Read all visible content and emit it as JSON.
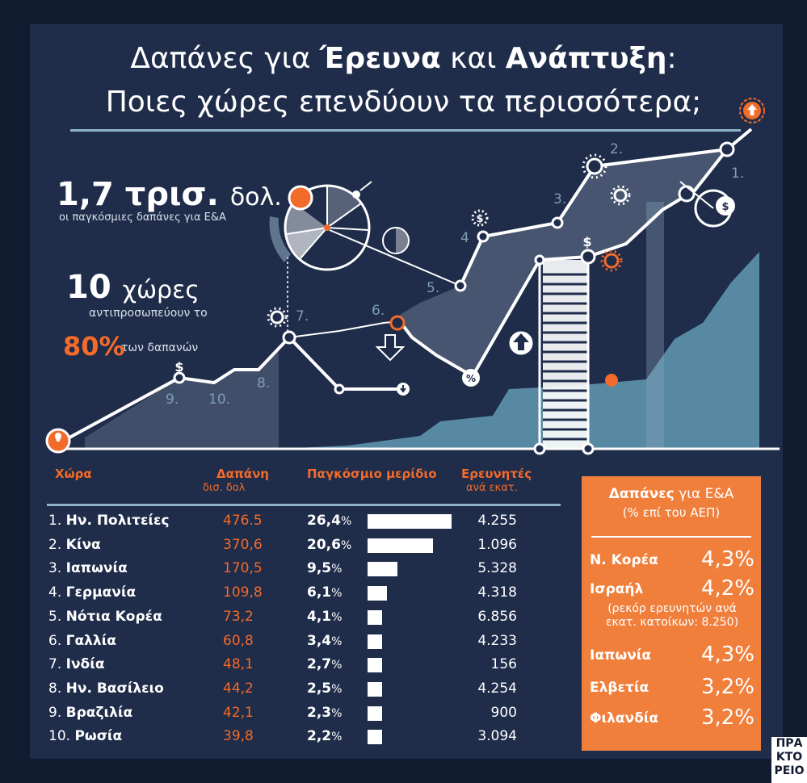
{
  "title": {
    "line1_a": "Δαπάνες για ",
    "line1_b": "Έρευνα",
    "line1_c": " και ",
    "line1_d": "Ανάπτυξη",
    "line1_e": ":",
    "line2": "Ποιες χώρες επενδύουν τα περισσότερα;"
  },
  "stats": {
    "global_value": "1,7 τρισ.",
    "global_unit": "δολ.",
    "global_caption": "οι παγκόσμιες δαπάνες για Ε&Α",
    "countries_value": "10",
    "countries_unit": "χώρες",
    "countries_caption": "αντιπροσωπεύουν το",
    "share_value": "80%",
    "share_caption": "των δαπανών"
  },
  "colors": {
    "background": "#111b30",
    "panel": "#1f2c4a",
    "accent": "#f26b2a",
    "box": "#f07f3c",
    "area": "#5c8ea8",
    "rule": "#8fb3c5"
  },
  "chart_data": {
    "type": "table",
    "columns": [
      "Χώρα",
      "Δαπάνη",
      "Παγκόσμιο μερίδιο",
      "Ερευνητές"
    ],
    "column_units": [
      "",
      "δισ. δολ",
      "",
      "ανά εκατ."
    ],
    "rows": [
      {
        "rank": "1.",
        "country": "Ην.  Πολιτείες",
        "spend": "476.5",
        "share": "26,4",
        "share_value": 26.4,
        "researchers": "4.255"
      },
      {
        "rank": "2.",
        "country": "Κίνα",
        "spend": "370,6",
        "share": "20,6",
        "share_value": 20.6,
        "researchers": "1.096"
      },
      {
        "rank": "3.",
        "country": "Ιαπωνία",
        "spend": "170,5",
        "share": "9,5",
        "share_value": 9.5,
        "researchers": "5.328"
      },
      {
        "rank": "4.",
        "country": "Γερμανία",
        "spend": "109,8",
        "share": "6,1",
        "share_value": 6.1,
        "researchers": "4.318"
      },
      {
        "rank": "5.",
        "country": "Νότια Κορέα",
        "spend": "73,2",
        "share": "4,1",
        "share_value": 4.1,
        "researchers": "6.856"
      },
      {
        "rank": "6.",
        "country": "Γαλλία",
        "spend": "60,8",
        "share": "3,4",
        "share_value": 3.4,
        "researchers": "4.233"
      },
      {
        "rank": "7.",
        "country": "Ινδία",
        "spend": "48,1",
        "share": "2,7",
        "share_value": 2.7,
        "researchers": "156"
      },
      {
        "rank": "8.",
        "country": "Ην. Βασίλειο",
        "spend": "44,2",
        "share": "2,5",
        "share_value": 2.5,
        "researchers": "4.254"
      },
      {
        "rank": "9.",
        "country": "Βραζιλία",
        "spend": "42,1",
        "share": "2,3",
        "share_value": 2.3,
        "researchers": "900"
      },
      {
        "rank": "10.",
        "country": "Ρωσία",
        "spend": "39,8",
        "share": "2,2",
        "share_value": 2.2,
        "researchers": "3.094"
      }
    ],
    "share_scale_max": 26.4,
    "chart_labels": [
      "1.",
      "2.",
      "3.",
      "4",
      "5.",
      "6.",
      "7.",
      "8.",
      "9.",
      "10."
    ]
  },
  "gdp_box": {
    "title_bold": "Δαπάνες",
    "title_rest": " για Ε&Α",
    "subtitle": "(% επί του ΑΕΠ)",
    "items": [
      {
        "name": "Ν. Κορέα",
        "value": "4,3%"
      },
      {
        "name": "Ισραήλ",
        "value": "4,2%"
      },
      {
        "name": "Ιαπωνία",
        "value": "4,3%"
      },
      {
        "name": "Ελβετία",
        "value": "3,2%"
      },
      {
        "name": "Φιλανδία",
        "value": "3,2%"
      }
    ],
    "note": "(ρεκόρ ερευνητών ανά εκατ. κατοίκων: 8.250)"
  },
  "icons": {
    "dollar": "$",
    "percent": "%"
  },
  "logo": [
    "ΠΡΑ",
    "ΚΤΟ",
    "ΡΕΙΟ"
  ]
}
